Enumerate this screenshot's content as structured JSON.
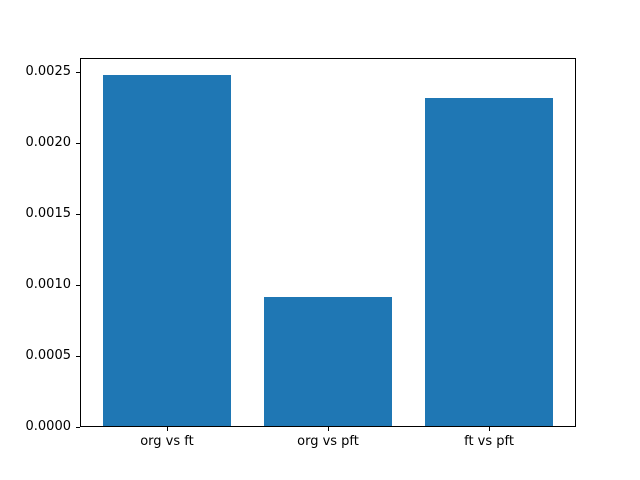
{
  "chart_data": {
    "type": "bar",
    "title": "",
    "xlabel": "",
    "ylabel": "",
    "categories": [
      "org vs ft",
      "org vs pft",
      "ft vs pft"
    ],
    "values": [
      0.00247,
      0.00091,
      0.00231
    ],
    "bar_color": "#1f77b4",
    "bar_width_fraction": 0.8,
    "ylim": [
      0,
      0.0026
    ],
    "ytick_values": [
      0.0,
      0.0005,
      0.001,
      0.0015,
      0.002,
      0.0025
    ],
    "ytick_labels": [
      "0.0000",
      "0.0005",
      "0.0010",
      "0.0015",
      "0.0020",
      "0.0025"
    ],
    "grid": false,
    "legend": null,
    "axis_color": "#000000",
    "background_color": "#ffffff"
  }
}
